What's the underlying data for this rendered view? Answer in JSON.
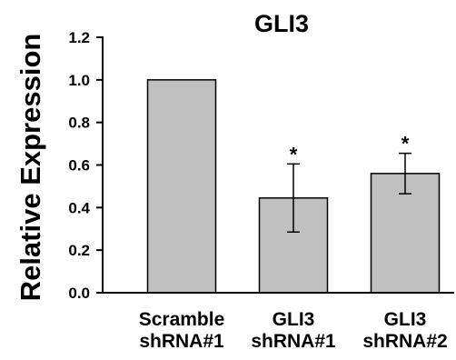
{
  "chart_data": {
    "type": "bar",
    "title": "GLI3",
    "xlabel": "",
    "ylabel": "Relative Expression",
    "ylim": [
      0,
      1.2
    ],
    "yticks": [
      "0.0",
      "0.2",
      "0.4",
      "0.6",
      "0.8",
      "1.0",
      "1.2"
    ],
    "categories": [
      [
        "Scramble",
        "shRNA#1"
      ],
      [
        "GLI3",
        "shRNA#1"
      ],
      [
        "GLI3",
        "shRNA#2"
      ]
    ],
    "values": [
      1.0,
      0.445,
      0.56
    ],
    "errors": [
      0,
      0.16,
      0.095
    ],
    "annotations": [
      "",
      "*",
      "*"
    ],
    "bar_color": "#c0c0c0",
    "grid": false,
    "legend": "none"
  }
}
